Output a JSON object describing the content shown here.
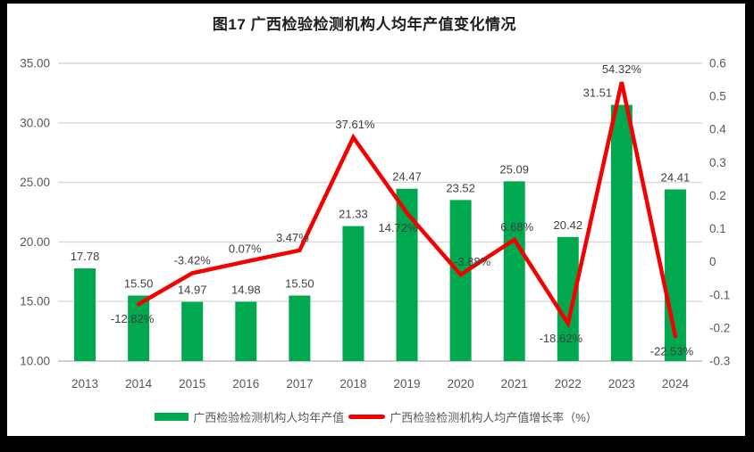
{
  "title": "图17  广西检验检测机构人均年产值变化情况",
  "colors": {
    "frame_background": "#000000",
    "canvas_background": "#ffffff",
    "bar_green": "#00a950",
    "line_red": "#f40000",
    "gridline": "#d9d9d9",
    "axis_line": "#cfcfcf",
    "tick_text": "#595959",
    "label_text": "#404040",
    "title_text": "#1f1f1f"
  },
  "chart_data": {
    "type": "bar",
    "subtype": "combo-bar-line-dual-axis",
    "title": "图17  广西检验检测机构人均年产值变化情况",
    "categories": [
      "2013",
      "2014",
      "2015",
      "2016",
      "2017",
      "2018",
      "2019",
      "2020",
      "2021",
      "2022",
      "2023",
      "2024"
    ],
    "series": [
      {
        "name": "广西检验检测机构人均年产值",
        "type": "bar",
        "axis": "left",
        "color": "#00a950",
        "values": [
          17.78,
          15.5,
          14.97,
          14.98,
          15.5,
          21.33,
          24.47,
          23.52,
          25.09,
          20.42,
          31.51,
          24.41
        ],
        "labels": [
          "17.78",
          "15.50",
          "14.97",
          "14.98",
          "15.50",
          "21.33",
          "24.47",
          "23.52",
          "25.09",
          "20.42",
          "31.51",
          "24.41"
        ]
      },
      {
        "name": "广西检验检测机构人均产值增长率（%）",
        "type": "line",
        "axis": "right",
        "color": "#f40000",
        "values": [
          null,
          -0.1282,
          -0.0342,
          0.0007,
          0.0347,
          0.3761,
          0.1472,
          -0.0388,
          0.0668,
          -0.1862,
          0.5432,
          -0.2253
        ],
        "labels": [
          "",
          "-12.82%",
          "-3.42%",
          "0.07%",
          "3.47%",
          "37.61%",
          "14.72%",
          "-3.88%",
          "6.68%",
          "-18.62%",
          "54.32%",
          "-22.53%"
        ],
        "label_side": [
          null,
          "below",
          "above",
          "above",
          "above",
          "above",
          "below",
          "above",
          "above",
          "below",
          "above",
          "below"
        ]
      }
    ],
    "left_axis": {
      "min": 10,
      "max": 35,
      "ticks": [
        "35.00",
        "30.00",
        "25.00",
        "20.00",
        "15.00",
        "10.00"
      ]
    },
    "right_axis": {
      "min": -0.3,
      "max": 0.6,
      "ticks": [
        "0.6",
        "0.5",
        "0.4",
        "0.3",
        "0.2",
        "0.1",
        "0",
        "-0.1",
        "-0.2",
        "-0.3"
      ]
    },
    "grid": "horizontal",
    "legend_position": "bottom"
  },
  "legend": {
    "items": [
      {
        "label": "广西检验检测机构人均年产值",
        "swatch": "bar"
      },
      {
        "label": "广西检验检测机构人均产值增长率（%）",
        "swatch": "line"
      }
    ]
  }
}
